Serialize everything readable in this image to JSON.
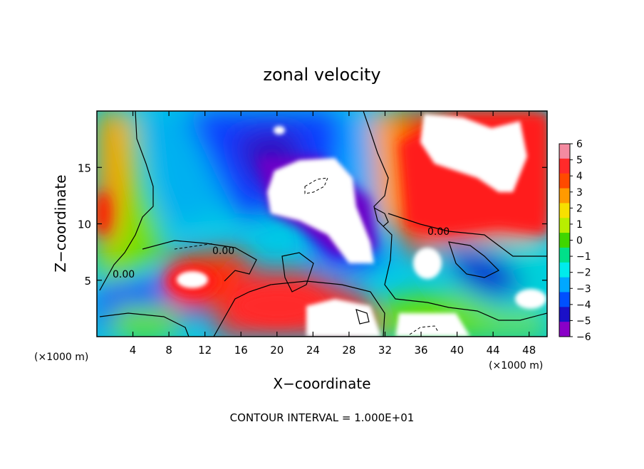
{
  "chart_data": {
    "type": "heatmap",
    "title": "zonal velocity",
    "xlabel": "X−coordinate",
    "ylabel": "Z−coordinate",
    "x_unit_label": "(×1000 m)",
    "y_unit_label": "(×1000 m)",
    "xlim": [
      0,
      50
    ],
    "ylim": [
      0,
      20
    ],
    "x_ticks": [
      4,
      8,
      12,
      16,
      20,
      24,
      28,
      32,
      36,
      40,
      44,
      48
    ],
    "y_ticks": [
      5,
      10,
      15
    ],
    "colorbar": {
      "ticks": [
        6,
        5,
        4,
        3,
        2,
        1,
        0,
        -1,
        -2,
        -3,
        -4,
        -5,
        -6
      ],
      "tick_labels": [
        "6",
        "5",
        "4",
        "3",
        "2",
        "1",
        "0",
        "−1",
        "−2",
        "−3",
        "−4",
        "−5",
        "−6"
      ],
      "colors": [
        "#f48aa0",
        "#ff2a2a",
        "#ff4a00",
        "#ff9a00",
        "#f7e000",
        "#b8ee00",
        "#3fd600",
        "#00e08a",
        "#00ecec",
        "#00a8ff",
        "#0050ff",
        "#1a10c8",
        "#8a00c8"
      ]
    },
    "contour_label": "0.00",
    "contour_interval_note": "CONTOUR INTERVAL = 1.000E+01",
    "above_range_color": "#ffffff"
  }
}
